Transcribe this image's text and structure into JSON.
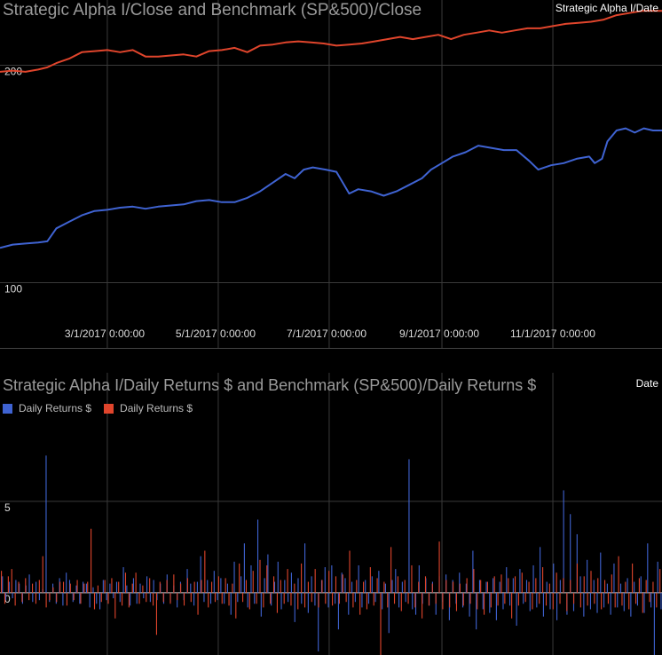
{
  "colors": {
    "background": "#000000",
    "grid": "#3a3a3a",
    "series_blue": "#3f63d2",
    "series_red": "#e0452c",
    "title_gray": "#9a9a9a"
  },
  "chart_data": [
    {
      "type": "line",
      "title": "Strategic Alpha I/Close and Benchmark (SP&500)/Close",
      "corner_label": "Strategic Alpha I/Date",
      "x_type": "date",
      "xlim": [
        "2017-01-01",
        "2017-12-31"
      ],
      "ylim": [
        70,
        230
      ],
      "grid": true,
      "y_ticks": [
        {
          "value": 100,
          "label": "100"
        },
        {
          "value": 200,
          "label": "200"
        }
      ],
      "x_ticks": [
        {
          "value": "2017-03-01",
          "label": "3/1/2017 0:00:00"
        },
        {
          "value": "2017-05-01",
          "label": "5/1/2017 0:00:00"
        },
        {
          "value": "2017-07-01",
          "label": "7/1/2017 0:00:00"
        },
        {
          "value": "2017-09-01",
          "label": "9/1/2017 0:00:00"
        },
        {
          "value": "2017-11-01",
          "label": "11/1/2017 0:00:00"
        }
      ],
      "series": [
        {
          "color": "#3f63d2",
          "points": [
            [
              "2017-01-01",
              116
            ],
            [
              "2017-01-08",
              117.5
            ],
            [
              "2017-01-15",
              118
            ],
            [
              "2017-01-22",
              118.5
            ],
            [
              "2017-01-27",
              119
            ],
            [
              "2017-02-01",
              125
            ],
            [
              "2017-02-08",
              128
            ],
            [
              "2017-02-15",
              131
            ],
            [
              "2017-02-22",
              133
            ],
            [
              "2017-03-01",
              133.5
            ],
            [
              "2017-03-08",
              134.5
            ],
            [
              "2017-03-15",
              135
            ],
            [
              "2017-03-22",
              134
            ],
            [
              "2017-03-29",
              135
            ],
            [
              "2017-04-05",
              135.5
            ],
            [
              "2017-04-12",
              136
            ],
            [
              "2017-04-19",
              137.5
            ],
            [
              "2017-04-26",
              138
            ],
            [
              "2017-05-03",
              137
            ],
            [
              "2017-05-10",
              137
            ],
            [
              "2017-05-17",
              139
            ],
            [
              "2017-05-24",
              142
            ],
            [
              "2017-05-31",
              146
            ],
            [
              "2017-06-07",
              150
            ],
            [
              "2017-06-12",
              148
            ],
            [
              "2017-06-17",
              152
            ],
            [
              "2017-06-22",
              153
            ],
            [
              "2017-06-29",
              152
            ],
            [
              "2017-07-05",
              151
            ],
            [
              "2017-07-12",
              141
            ],
            [
              "2017-07-17",
              143
            ],
            [
              "2017-07-24",
              142
            ],
            [
              "2017-07-31",
              140
            ],
            [
              "2017-08-07",
              142
            ],
            [
              "2017-08-14",
              145
            ],
            [
              "2017-08-21",
              148
            ],
            [
              "2017-08-26",
              152
            ],
            [
              "2017-09-01",
              155
            ],
            [
              "2017-09-07",
              158
            ],
            [
              "2017-09-14",
              160
            ],
            [
              "2017-09-21",
              163
            ],
            [
              "2017-09-28",
              162
            ],
            [
              "2017-10-05",
              161
            ],
            [
              "2017-10-12",
              161
            ],
            [
              "2017-10-19",
              156
            ],
            [
              "2017-10-24",
              152
            ],
            [
              "2017-10-31",
              154
            ],
            [
              "2017-11-07",
              155
            ],
            [
              "2017-11-14",
              157
            ],
            [
              "2017-11-21",
              158
            ],
            [
              "2017-11-24",
              155
            ],
            [
              "2017-11-28",
              157
            ],
            [
              "2017-12-01",
              165
            ],
            [
              "2017-12-06",
              170
            ],
            [
              "2017-12-11",
              171
            ],
            [
              "2017-12-16",
              169
            ],
            [
              "2017-12-21",
              171
            ],
            [
              "2017-12-26",
              170
            ],
            [
              "2017-12-31",
              170
            ]
          ]
        },
        {
          "color": "#e0452c",
          "points": [
            [
              "2017-01-01",
              197
            ],
            [
              "2017-01-08",
              197.5
            ],
            [
              "2017-01-15",
              197
            ],
            [
              "2017-01-22",
              198
            ],
            [
              "2017-01-27",
              199
            ],
            [
              "2017-02-01",
              201
            ],
            [
              "2017-02-08",
              203
            ],
            [
              "2017-02-15",
              206
            ],
            [
              "2017-02-22",
              206.5
            ],
            [
              "2017-03-01",
              207
            ],
            [
              "2017-03-08",
              206
            ],
            [
              "2017-03-15",
              207
            ],
            [
              "2017-03-22",
              204
            ],
            [
              "2017-03-29",
              204
            ],
            [
              "2017-04-05",
              204.5
            ],
            [
              "2017-04-12",
              205
            ],
            [
              "2017-04-19",
              204
            ],
            [
              "2017-04-26",
              206.5
            ],
            [
              "2017-05-03",
              207
            ],
            [
              "2017-05-10",
              208
            ],
            [
              "2017-05-17",
              206
            ],
            [
              "2017-05-24",
              209
            ],
            [
              "2017-05-31",
              209.5
            ],
            [
              "2017-06-07",
              210.5
            ],
            [
              "2017-06-14",
              211
            ],
            [
              "2017-06-21",
              210.5
            ],
            [
              "2017-06-28",
              210
            ],
            [
              "2017-07-05",
              209
            ],
            [
              "2017-07-12",
              209.5
            ],
            [
              "2017-07-19",
              210
            ],
            [
              "2017-07-26",
              211
            ],
            [
              "2017-08-02",
              212
            ],
            [
              "2017-08-09",
              213
            ],
            [
              "2017-08-16",
              212
            ],
            [
              "2017-08-23",
              213
            ],
            [
              "2017-08-30",
              214
            ],
            [
              "2017-09-06",
              212
            ],
            [
              "2017-09-13",
              214
            ],
            [
              "2017-09-20",
              215
            ],
            [
              "2017-09-27",
              216
            ],
            [
              "2017-10-04",
              215
            ],
            [
              "2017-10-11",
              216
            ],
            [
              "2017-10-18",
              217
            ],
            [
              "2017-10-25",
              217
            ],
            [
              "2017-11-01",
              218
            ],
            [
              "2017-11-08",
              219
            ],
            [
              "2017-11-15",
              219.5
            ],
            [
              "2017-11-22",
              220
            ],
            [
              "2017-11-29",
              221
            ],
            [
              "2017-12-06",
              223
            ],
            [
              "2017-12-13",
              224
            ],
            [
              "2017-12-20",
              225
            ],
            [
              "2017-12-27",
              225
            ],
            [
              "2017-12-31",
              225
            ]
          ]
        }
      ]
    },
    {
      "type": "bar",
      "title": "Strategic Alpha I/Daily Returns $ and Benchmark (SP&500)/Daily Returns $",
      "corner_label": "Date",
      "x_type": "date",
      "xlim": [
        "2017-01-01",
        "2017-12-31"
      ],
      "ylim": [
        -3.4,
        9.6
      ],
      "grid": true,
      "y_ticks": [
        {
          "value": 0,
          "label": "0"
        },
        {
          "value": 5,
          "label": "5"
        }
      ],
      "legend": [
        {
          "name": "Daily Returns $",
          "color": "#3f63d2"
        },
        {
          "name": "Daily Returns $",
          "color": "#e0452c"
        }
      ],
      "series": [
        {
          "color": "#3f63d2",
          "values": [
            0.9,
            -0.4,
            0.6,
            -0.3,
            0.7,
            0.5,
            -0.6,
            0.4,
            1.0,
            -0.5,
            0.6,
            -0.4,
            0.2,
            7.5,
            -0.5,
            0.5,
            -0.6,
            0.8,
            -0.7,
            1.1,
            0.7,
            -0.5,
            0.4,
            -0.6,
            0.6,
            0.5,
            -0.8,
            0.3,
            -0.6,
            -0.9,
            0.7,
            -0.4,
            0.5,
            -0.3,
            0.6,
            -0.5,
            1.4,
            0.4,
            -0.7,
            0.8,
            -0.6,
            0.5,
            -0.3,
            0.9,
            -0.5,
            0.7,
            -0.4,
            0.5,
            -0.6,
            1.0,
            -0.5,
            0.4,
            -0.8,
            0.6,
            -0.4,
            1.3,
            0.5,
            -0.7,
            0.6,
            2.0,
            -0.5,
            0.7,
            -0.6,
            1.2,
            -0.4,
            0.8,
            -0.6,
            0.5,
            -1.2,
            1.7,
            -0.5,
            0.9,
            2.7,
            -0.8,
            1.5,
            -0.6,
            4.0,
            -1.3,
            0.8,
            2.1,
            -0.7,
            0.6,
            1.7,
            -0.9,
            0.7,
            -0.5,
            1.1,
            -1.6,
            0.8,
            -0.6,
            2.7,
            -1.1,
            0.9,
            -0.7,
            -3.2,
            0.7,
            1.4,
            -0.8,
            1.5,
            -0.6,
            -2.0,
            1.1,
            0.8,
            -1.2,
            0.6,
            -0.5,
            1.5,
            -0.8,
            0.7,
            -0.6,
            0.9,
            -0.5,
            1.2,
            -0.9,
            0.5,
            -2.2,
            0.7,
            1.3,
            -0.8,
            0.6,
            -0.5,
            7.3,
            -0.9,
            -1.2,
            1.5,
            -0.6,
            0.8,
            -0.7,
            0.6,
            -1.2,
            0.9,
            -0.5,
            1.0,
            -1.5,
            0.7,
            -0.6,
            1.1,
            -0.8,
            0.5,
            -1.3,
            2.3,
            -2.0,
            0.7,
            -0.9,
            0.6,
            -1.1,
            0.8,
            -1.5,
            0.6,
            -0.9,
            1.4,
            -0.7,
            0.8,
            -1.8,
            1.3,
            -0.6,
            0.7,
            -1.0,
            1.5,
            -0.8,
            2.5,
            -1.3,
            0.6,
            -0.9,
            1.6,
            -1.5,
            0.7,
            5.6,
            -1.2,
            4.3,
            -1.0,
            3.2,
            0.9,
            -1.3,
            1.8,
            -0.9,
            0.7,
            -1.1,
            2.2,
            -0.8,
            0.5,
            -1.2,
            1.6,
            -0.8,
            0.5,
            -1.0,
            0.8,
            -1.3,
            0.6,
            -0.7,
            0.9,
            -1.1,
            2.7,
            -0.8,
            -3.4,
            1.7,
            -0.9
          ]
        },
        {
          "color": "#e0452c",
          "values": [
            1.2,
            -0.6,
            0.9,
            1.3,
            -0.7,
            0.6,
            -0.5,
            0.8,
            -0.4,
            0.5,
            -0.6,
            0.7,
            2.0,
            -0.8,
            -0.4,
            0.3,
            -0.5,
            0.6,
            0.6,
            -0.7,
            0.5,
            -0.4,
            0.7,
            -0.6,
            0.5,
            0.6,
            3.5,
            -0.9,
            0.4,
            -0.5,
            0.7,
            -0.6,
            0.8,
            -1.4,
            0.6,
            -0.7,
            1.1,
            -0.8,
            0.5,
            1.1,
            -0.6,
            0.4,
            -0.5,
            0.8,
            -0.7,
            -2.3,
            0.6,
            -0.5,
            0.7,
            -0.6,
            1.0,
            -0.4,
            0.5,
            -0.7,
            0.8,
            -0.5,
            0.6,
            -1.2,
            0.7,
            2.3,
            -0.8,
            0.6,
            -0.5,
            0.9,
            -0.6,
            0.8,
            -0.7,
            0.5,
            -1.4,
            1.6,
            -0.5,
            0.7,
            -0.9,
            1.2,
            -0.6,
            1.8,
            -0.8,
            1.5,
            -0.6,
            0.9,
            -1.1,
            0.7,
            -0.6,
            1.3,
            -0.7,
            0.5,
            -0.9,
            1.6,
            -0.8,
            0.6,
            -0.5,
            1.3,
            -0.8,
            0.7,
            -0.6,
            1.2,
            -0.7,
            0.9,
            -0.6,
            1.0,
            -0.5,
            2.3,
            -0.8,
            0.7,
            -1.2,
            0.6,
            -0.9,
            1.4,
            -0.7,
            0.8,
            -3.4,
            0.6,
            -0.8,
            2.5,
            -0.6,
            0.9,
            -1.0,
            0.7,
            -0.6,
            1.5,
            -0.8,
            0.6,
            -1.4,
            0.9,
            -0.7,
            0.5,
            -0.6,
            2.8,
            -0.9,
            0.7,
            -0.8,
            0.6,
            -1.0,
            0.5,
            -0.7,
            0.8,
            -0.6,
            1.3,
            -0.9,
            0.7,
            -1.2,
            0.6,
            -0.8,
            0.9,
            -0.7,
            1.0,
            -0.6,
            0.8,
            -1.4,
            0.9,
            -0.7,
            1.1,
            -0.5,
            0.6,
            -0.9,
            0.8,
            -0.6,
            1.4,
            -0.7,
            0.5,
            -0.9,
            1.1,
            -0.6,
            0.8,
            -1.0,
            0.7,
            -0.6,
            1.6,
            -0.8,
            0.9,
            -0.7,
            1.2,
            -0.6,
            0.8,
            -0.9,
            0.7,
            -0.6,
            1.0,
            -0.8,
            2.0,
            -0.7,
            0.6,
            -0.9,
            1.6,
            -0.6,
            0.8,
            -1.1,
            0.7,
            -0.5,
            0.6,
            -0.8,
            1.3
          ]
        }
      ]
    }
  ]
}
